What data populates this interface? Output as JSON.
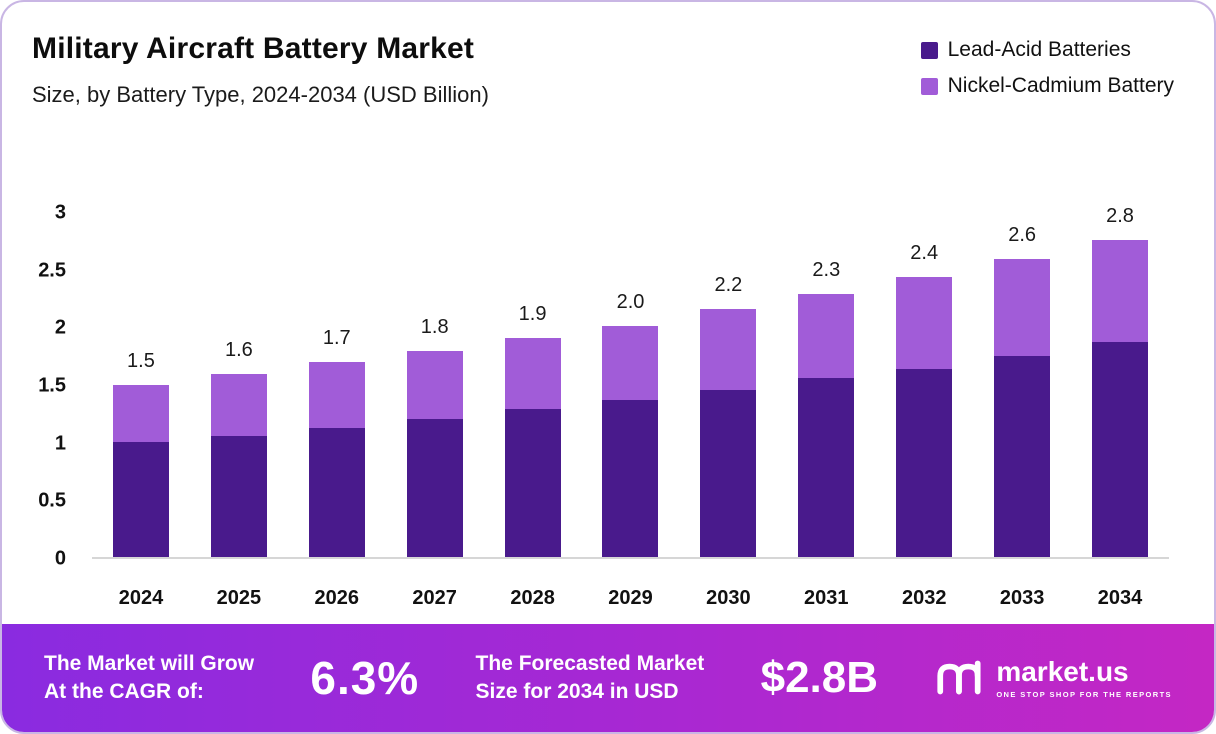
{
  "header": {
    "title": "Military Aircraft Battery Market",
    "subtitle": "Size, by Battery Type, 2024-2034 (USD Billion)"
  },
  "legend": [
    {
      "label": "Lead-Acid Batteries",
      "color": "#491a8c"
    },
    {
      "label": "Nickel-Cadmium Battery",
      "color": "#a15cd8"
    }
  ],
  "chart_data": {
    "type": "bar",
    "stacked": true,
    "title": "Military Aircraft Battery Market Size, by Battery Type, 2024-2034 (USD Billion)",
    "categories": [
      "2024",
      "2025",
      "2026",
      "2027",
      "2028",
      "2029",
      "2030",
      "2031",
      "2032",
      "2033",
      "2034"
    ],
    "series": [
      {
        "name": "Lead-Acid Batteries",
        "color": "#491a8c",
        "values": [
          1.0,
          1.05,
          1.12,
          1.2,
          1.28,
          1.36,
          1.45,
          1.55,
          1.63,
          1.74,
          1.86
        ]
      },
      {
        "name": "Nickel-Cadmium Battery",
        "color": "#a15cd8",
        "values": [
          0.49,
          0.54,
          0.57,
          0.59,
          0.62,
          0.64,
          0.7,
          0.73,
          0.8,
          0.84,
          0.89
        ]
      }
    ],
    "totals_labels": [
      "1.5",
      "1.6",
      "1.7",
      "1.8",
      "1.9",
      "2.0",
      "2.2",
      "2.3",
      "2.4",
      "2.6",
      "2.8"
    ],
    "y_ticks": [
      0,
      0.5,
      1,
      1.5,
      2,
      2.5,
      3
    ],
    "y_tick_labels": [
      "0",
      "0.5",
      "1",
      "1.5",
      "2",
      "2.5",
      "3"
    ],
    "ylim": [
      0,
      3
    ],
    "xlabel": "",
    "ylabel": "",
    "grid": false,
    "legend_position": "top-right"
  },
  "banner": {
    "left_line1": "The Market will Grow",
    "left_line2": "At the CAGR of:",
    "cagr": "6.3%",
    "mid_line1": "The Forecasted Market",
    "mid_line2": "Size for 2034 in USD",
    "value": "$2.8B",
    "brand": "market.us",
    "brand_tagline": "One Stop Shop For The Reports"
  }
}
